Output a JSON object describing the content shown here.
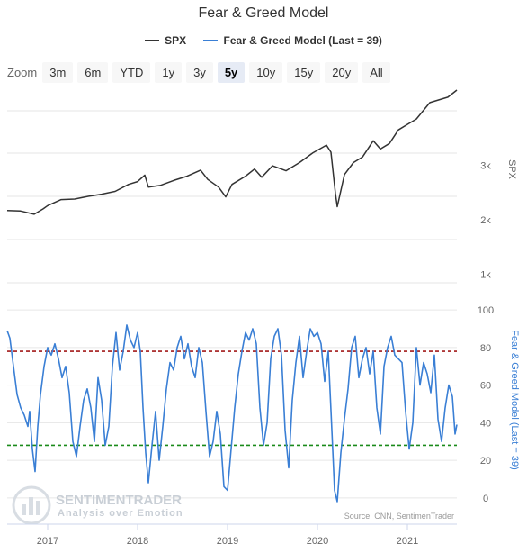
{
  "chart_data": {
    "type": "line",
    "title": "Fear & Greed Model",
    "zoom": {
      "label": "Zoom",
      "buttons": [
        "3m",
        "6m",
        "YTD",
        "1y",
        "3y",
        "5y",
        "10y",
        "15y",
        "20y",
        "All"
      ],
      "selected": "5y"
    },
    "legend": [
      {
        "name": "SPX",
        "color": "#333333"
      },
      {
        "name": "Fear & Greed Model (Last = 39)",
        "color": "#3a7fd5"
      }
    ],
    "x_ticks": [
      "2017",
      "2018",
      "2019",
      "2020",
      "2021"
    ],
    "x_range": [
      2016.55,
      2021.55
    ],
    "top_axis": {
      "label": "SPX",
      "ticks": [
        "1k",
        "2k",
        "3k"
      ],
      "tick_values": [
        1000,
        2000,
        3000
      ],
      "range": [
        0,
        4000
      ]
    },
    "bottom_axis": {
      "label": "Fear & Greed Model (Last = 39)",
      "ticks": [
        "0",
        "20",
        "40",
        "60",
        "80",
        "100"
      ],
      "tick_values": [
        0,
        20,
        40,
        60,
        80,
        100
      ],
      "range": [
        -2,
        102
      ]
    },
    "reference_lines": [
      {
        "value": 78,
        "color": "#a31a1a"
      },
      {
        "value": 28,
        "color": "#1a8a1a"
      }
    ],
    "series": [
      {
        "name": "SPX",
        "color": "#333333",
        "points": [
          [
            2016.55,
            2170
          ],
          [
            2016.7,
            2160
          ],
          [
            2016.85,
            2100
          ],
          [
            2016.95,
            2200
          ],
          [
            2017.0,
            2260
          ],
          [
            2017.15,
            2370
          ],
          [
            2017.3,
            2380
          ],
          [
            2017.45,
            2430
          ],
          [
            2017.6,
            2470
          ],
          [
            2017.75,
            2520
          ],
          [
            2017.9,
            2650
          ],
          [
            2018.0,
            2700
          ],
          [
            2018.08,
            2820
          ],
          [
            2018.12,
            2600
          ],
          [
            2018.25,
            2630
          ],
          [
            2018.4,
            2720
          ],
          [
            2018.55,
            2800
          ],
          [
            2018.7,
            2910
          ],
          [
            2018.78,
            2740
          ],
          [
            2018.9,
            2600
          ],
          [
            2018.98,
            2420
          ],
          [
            2019.05,
            2650
          ],
          [
            2019.2,
            2800
          ],
          [
            2019.3,
            2930
          ],
          [
            2019.38,
            2780
          ],
          [
            2019.5,
            2990
          ],
          [
            2019.65,
            2900
          ],
          [
            2019.8,
            3050
          ],
          [
            2019.95,
            3230
          ],
          [
            2020.1,
            3370
          ],
          [
            2020.15,
            3240
          ],
          [
            2020.2,
            2480
          ],
          [
            2020.22,
            2240
          ],
          [
            2020.3,
            2830
          ],
          [
            2020.4,
            3050
          ],
          [
            2020.5,
            3150
          ],
          [
            2020.62,
            3450
          ],
          [
            2020.7,
            3300
          ],
          [
            2020.8,
            3400
          ],
          [
            2020.9,
            3650
          ],
          [
            2021.0,
            3750
          ],
          [
            2021.1,
            3850
          ],
          [
            2021.25,
            4150
          ],
          [
            2021.35,
            4200
          ],
          [
            2021.45,
            4250
          ],
          [
            2021.55,
            4380
          ]
        ]
      },
      {
        "name": "Fear & Greed Model (Last = 39)",
        "color": "#3a7fd5",
        "points": [
          [
            2016.55,
            89
          ],
          [
            2016.58,
            85
          ],
          [
            2016.62,
            70
          ],
          [
            2016.66,
            55
          ],
          [
            2016.7,
            48
          ],
          [
            2016.74,
            44
          ],
          [
            2016.78,
            38
          ],
          [
            2016.8,
            46
          ],
          [
            2016.83,
            26
          ],
          [
            2016.86,
            14
          ],
          [
            2016.89,
            38
          ],
          [
            2016.92,
            55
          ],
          [
            2016.96,
            70
          ],
          [
            2017.0,
            80
          ],
          [
            2017.04,
            76
          ],
          [
            2017.08,
            82
          ],
          [
            2017.12,
            74
          ],
          [
            2017.16,
            64
          ],
          [
            2017.2,
            70
          ],
          [
            2017.24,
            56
          ],
          [
            2017.28,
            30
          ],
          [
            2017.32,
            22
          ],
          [
            2017.36,
            38
          ],
          [
            2017.4,
            52
          ],
          [
            2017.44,
            58
          ],
          [
            2017.48,
            48
          ],
          [
            2017.52,
            30
          ],
          [
            2017.56,
            64
          ],
          [
            2017.6,
            52
          ],
          [
            2017.64,
            28
          ],
          [
            2017.68,
            38
          ],
          [
            2017.72,
            70
          ],
          [
            2017.76,
            88
          ],
          [
            2017.8,
            68
          ],
          [
            2017.84,
            78
          ],
          [
            2017.88,
            92
          ],
          [
            2017.92,
            84
          ],
          [
            2017.96,
            80
          ],
          [
            2018.0,
            88
          ],
          [
            2018.03,
            78
          ],
          [
            2018.06,
            48
          ],
          [
            2018.09,
            24
          ],
          [
            2018.12,
            8
          ],
          [
            2018.16,
            28
          ],
          [
            2018.2,
            46
          ],
          [
            2018.24,
            20
          ],
          [
            2018.28,
            38
          ],
          [
            2018.32,
            58
          ],
          [
            2018.36,
            72
          ],
          [
            2018.4,
            68
          ],
          [
            2018.44,
            80
          ],
          [
            2018.48,
            86
          ],
          [
            2018.52,
            74
          ],
          [
            2018.56,
            82
          ],
          [
            2018.6,
            70
          ],
          [
            2018.64,
            64
          ],
          [
            2018.68,
            80
          ],
          [
            2018.72,
            72
          ],
          [
            2018.76,
            46
          ],
          [
            2018.8,
            22
          ],
          [
            2018.84,
            30
          ],
          [
            2018.88,
            46
          ],
          [
            2018.92,
            34
          ],
          [
            2018.96,
            6
          ],
          [
            2019.0,
            4
          ],
          [
            2019.04,
            26
          ],
          [
            2019.08,
            48
          ],
          [
            2019.12,
            66
          ],
          [
            2019.16,
            78
          ],
          [
            2019.2,
            88
          ],
          [
            2019.24,
            84
          ],
          [
            2019.28,
            90
          ],
          [
            2019.32,
            82
          ],
          [
            2019.36,
            48
          ],
          [
            2019.4,
            28
          ],
          [
            2019.44,
            40
          ],
          [
            2019.48,
            74
          ],
          [
            2019.52,
            86
          ],
          [
            2019.56,
            90
          ],
          [
            2019.6,
            76
          ],
          [
            2019.64,
            36
          ],
          [
            2019.68,
            16
          ],
          [
            2019.72,
            52
          ],
          [
            2019.76,
            72
          ],
          [
            2019.8,
            86
          ],
          [
            2019.84,
            64
          ],
          [
            2019.88,
            78
          ],
          [
            2019.92,
            90
          ],
          [
            2019.96,
            86
          ],
          [
            2020.0,
            88
          ],
          [
            2020.04,
            82
          ],
          [
            2020.08,
            62
          ],
          [
            2020.12,
            78
          ],
          [
            2020.16,
            36
          ],
          [
            2020.19,
            4
          ],
          [
            2020.22,
            -2
          ],
          [
            2020.26,
            24
          ],
          [
            2020.3,
            42
          ],
          [
            2020.34,
            58
          ],
          [
            2020.38,
            80
          ],
          [
            2020.42,
            86
          ],
          [
            2020.46,
            64
          ],
          [
            2020.5,
            74
          ],
          [
            2020.54,
            80
          ],
          [
            2020.58,
            66
          ],
          [
            2020.62,
            78
          ],
          [
            2020.66,
            48
          ],
          [
            2020.7,
            34
          ],
          [
            2020.74,
            70
          ],
          [
            2020.78,
            80
          ],
          [
            2020.82,
            86
          ],
          [
            2020.86,
            76
          ],
          [
            2020.9,
            74
          ],
          [
            2020.94,
            72
          ],
          [
            2020.98,
            46
          ],
          [
            2021.02,
            26
          ],
          [
            2021.06,
            40
          ],
          [
            2021.1,
            80
          ],
          [
            2021.14,
            60
          ],
          [
            2021.18,
            72
          ],
          [
            2021.22,
            66
          ],
          [
            2021.26,
            56
          ],
          [
            2021.3,
            76
          ],
          [
            2021.34,
            42
          ],
          [
            2021.38,
            30
          ],
          [
            2021.42,
            48
          ],
          [
            2021.46,
            60
          ],
          [
            2021.5,
            54
          ],
          [
            2021.53,
            34
          ],
          [
            2021.55,
            39
          ]
        ]
      }
    ],
    "credit": "Source: CNN, SentimenTrader",
    "watermark": {
      "brand": "SENTIMENTRADER",
      "tagline": "Analysis over Emotion"
    }
  }
}
